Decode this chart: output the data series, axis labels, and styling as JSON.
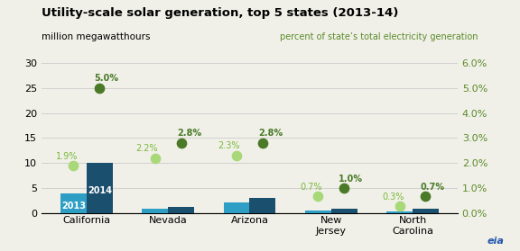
{
  "title": "Utility-scale solar generation, top 5 states (2013-14)",
  "ylabel_left": "million megawatthours",
  "ylabel_right": "percent of state’s total electricity generation",
  "states": [
    "California",
    "Nevada",
    "Arizona",
    "New\nJersey",
    "North\nCarolina"
  ],
  "bar_2013": [
    4.0,
    1.0,
    2.2,
    0.5,
    0.3
  ],
  "bar_2014": [
    10.0,
    1.2,
    3.1,
    0.9,
    1.0
  ],
  "pct_2013": [
    1.9,
    2.2,
    2.3,
    0.7,
    0.3
  ],
  "pct_2014": [
    5.0,
    2.8,
    2.8,
    1.0,
    0.7
  ],
  "ylim_left": [
    0,
    30
  ],
  "ylim_right": [
    0,
    6.0
  ],
  "yticks_left": [
    0,
    5,
    10,
    15,
    20,
    25,
    30
  ],
  "yticks_right": [
    0.0,
    1.0,
    2.0,
    3.0,
    4.0,
    5.0,
    6.0
  ],
  "ytick_labels_right": [
    "0.0%",
    "1.0%",
    "2.0%",
    "3.0%",
    "4.0%",
    "5.0%",
    "6.0%"
  ],
  "color_bar_2013": "#2e9ec4",
  "color_bar_2014": "#1b4f6e",
  "color_dot_2013": "#a8d878",
  "color_dot_2014": "#4a7a28",
  "color_pct_label_2013": "#7ab83a",
  "color_pct_label_2014": "#4a7a28",
  "color_right_axis": "#5a8a28",
  "background_color": "#f0f0e8",
  "title_fontsize": 9.5,
  "tick_fontsize": 8,
  "bar_width": 0.32,
  "bar_label_fontsize": 7
}
